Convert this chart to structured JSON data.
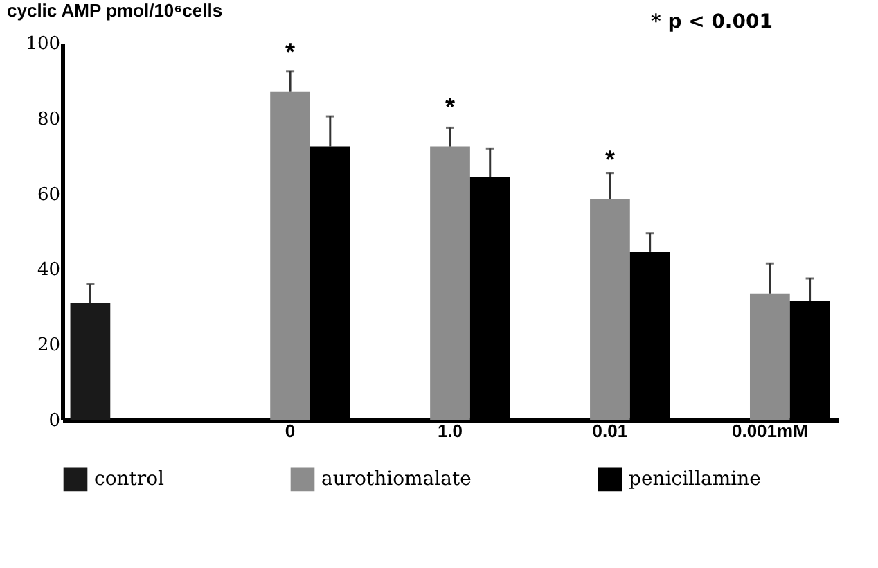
{
  "chart_data": {
    "type": "bar",
    "ylabel": "cyclic AMP pmol/10⁶cells",
    "categories": [
      null,
      "0",
      "1.0",
      "0.01",
      "0.001mM"
    ],
    "series": [
      {
        "name": "control",
        "color": "#1a1a1a",
        "values": [
          31,
          null,
          null,
          null,
          null
        ],
        "errors": [
          5,
          null,
          null,
          null,
          null
        ]
      },
      {
        "name": "aurothiomalate",
        "color": "#8c8c8c",
        "values": [
          null,
          87,
          72.5,
          58.5,
          33.5
        ],
        "errors": [
          null,
          5.5,
          5,
          7,
          8
        ]
      },
      {
        "name": "penicillamine",
        "color": "#000000",
        "values": [
          null,
          72.5,
          64.5,
          44.5,
          31.5
        ],
        "errors": [
          null,
          8,
          7.5,
          5,
          6
        ]
      }
    ],
    "ylim": [
      0,
      100
    ],
    "yticks": [
      0,
      20,
      40,
      60,
      80,
      100
    ],
    "grid": false,
    "legend": "bottom",
    "annotations": [
      "* p < 0.001",
      {
        "text": "*",
        "x": "0",
        "y": 87
      },
      {
        "text": "*",
        "x": "1.0",
        "y": 72.5
      },
      {
        "text": "*",
        "x": "0.01",
        "y": 58.5
      }
    ]
  }
}
